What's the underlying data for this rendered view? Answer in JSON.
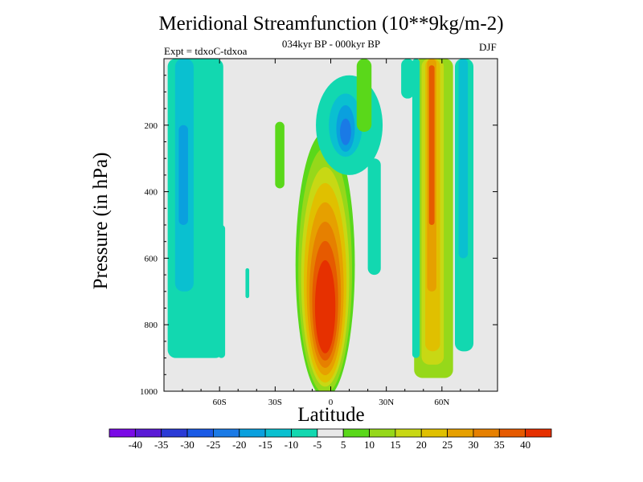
{
  "chart_data": {
    "type": "heatmap",
    "title": "Meridional Streamfunction (10**9kg/m-2)",
    "subtitle": "034kyr BP - 000kyr BP",
    "left_label": "Expt = tdxoC-tdxoa",
    "right_label": "DJF",
    "xlabel": "Latitude",
    "ylabel": "Pressure (in hPa)",
    "xlim": [
      -90,
      90
    ],
    "ylim": [
      1000,
      0
    ],
    "x_ticks": [
      {
        "value": -60,
        "label": "60S"
      },
      {
        "value": -30,
        "label": "30S"
      },
      {
        "value": 0,
        "label": "0"
      },
      {
        "value": 30,
        "label": "30N"
      },
      {
        "value": 60,
        "label": "60N"
      }
    ],
    "y_ticks": [
      {
        "value": 200,
        "label": "200"
      },
      {
        "value": 400,
        "label": "400"
      },
      {
        "value": 600,
        "label": "600"
      },
      {
        "value": 800,
        "label": "800"
      },
      {
        "value": 1000,
        "label": "1000"
      }
    ],
    "colorbar": {
      "levels": [
        "-40",
        "-35",
        "-30",
        "-25",
        "-20",
        "-15",
        "-10",
        "-5",
        "5",
        "10",
        "15",
        "20",
        "25",
        "30",
        "35",
        "40"
      ],
      "colors": [
        "#7a0ae6",
        "#5a1ad6",
        "#2a3ad6",
        "#1a5ae6",
        "#1a7ae6",
        "#0aa0de",
        "#0ac0d0",
        "#12d8b0",
        "#e8e8e8",
        "#5ad81a",
        "#96d81a",
        "#c8d814",
        "#e0c000",
        "#e6a000",
        "#e68000",
        "#e65a00",
        "#e63000"
      ]
    },
    "background_color": "#e8e8e8",
    "features": [
      {
        "kind": "positive",
        "max": 40,
        "lat_range": [
          -15,
          15
        ],
        "p_range": [
          280,
          1000
        ],
        "peak_lat": -3,
        "peak_p": 780
      },
      {
        "kind": "positive",
        "max": 32,
        "lat_range": [
          45,
          62
        ],
        "p_range": [
          0,
          1000
        ],
        "peak_lat": 55,
        "peak_p": 250
      },
      {
        "kind": "negative",
        "min": -25,
        "lat_range": [
          0,
          28
        ],
        "p_range": [
          50,
          340
        ],
        "peak_lat": 8,
        "peak_p": 220
      },
      {
        "kind": "negative",
        "min": -15,
        "lat_range": [
          -88,
          -58
        ],
        "p_range": [
          0,
          920
        ]
      },
      {
        "kind": "negative",
        "min": -10,
        "lat_range": [
          60,
          78
        ],
        "p_range": [
          0,
          880
        ]
      }
    ]
  }
}
